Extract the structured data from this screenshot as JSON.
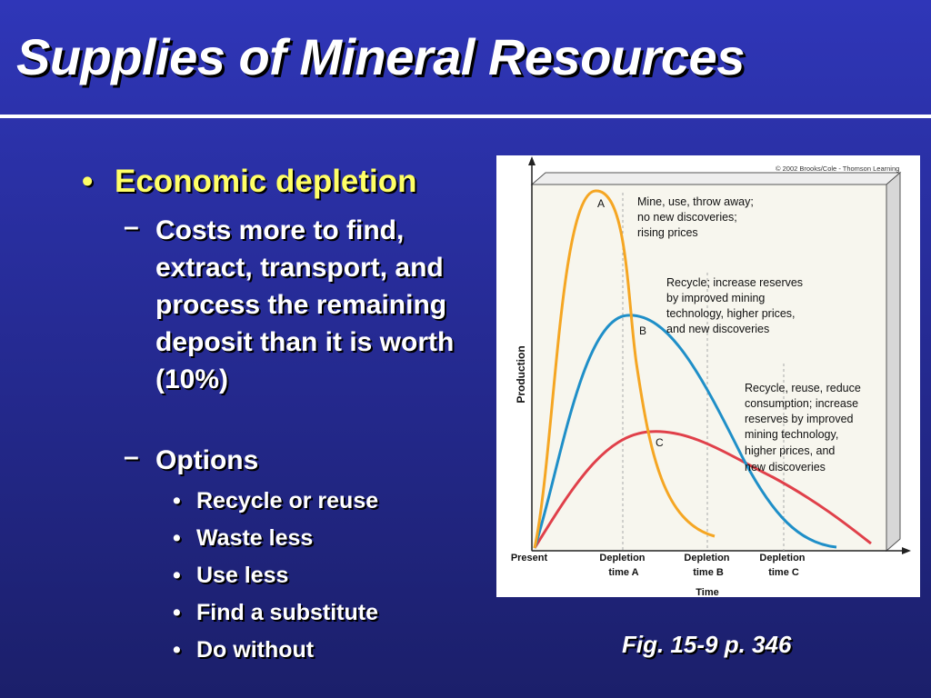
{
  "slide": {
    "title": "Supplies of Mineral Resources",
    "bullet1": "Economic depletion",
    "sub1": "Costs more to find, extract, transport, and process the remaining deposit than it is worth (10%)",
    "sub2": "Options",
    "options": [
      "Recycle or reuse",
      "Waste less",
      "Use less",
      "Find a substitute",
      "Do without"
    ],
    "caption": "Fig. 15-9 p. 346"
  },
  "figure": {
    "copyright": "© 2002 Brooks/Cole - Thomson Learning",
    "ylabel": "Production",
    "xlabel": "Time",
    "ticks": {
      "present": "Present",
      "depA1": "Depletion",
      "depA2": "time A",
      "depB1": "Depletion",
      "depB2": "time B",
      "depC1": "Depletion",
      "depC2": "time C"
    },
    "curves": [
      {
        "label": "A",
        "color": "#f5a623",
        "note": [
          "Mine, use, throw away;",
          "no new discoveries;",
          "rising prices"
        ]
      },
      {
        "label": "B",
        "color": "#1f8fc8",
        "note": [
          "Recycle; increase reserves",
          "by improved mining",
          "technology, higher prices,",
          "and new discoveries"
        ]
      },
      {
        "label": "C",
        "color": "#e0404a",
        "note": [
          "Recycle, reuse, reduce",
          "consumption; increase",
          "reserves by improved",
          "mining technology,",
          "higher prices, and",
          "new discoveries"
        ]
      }
    ]
  }
}
